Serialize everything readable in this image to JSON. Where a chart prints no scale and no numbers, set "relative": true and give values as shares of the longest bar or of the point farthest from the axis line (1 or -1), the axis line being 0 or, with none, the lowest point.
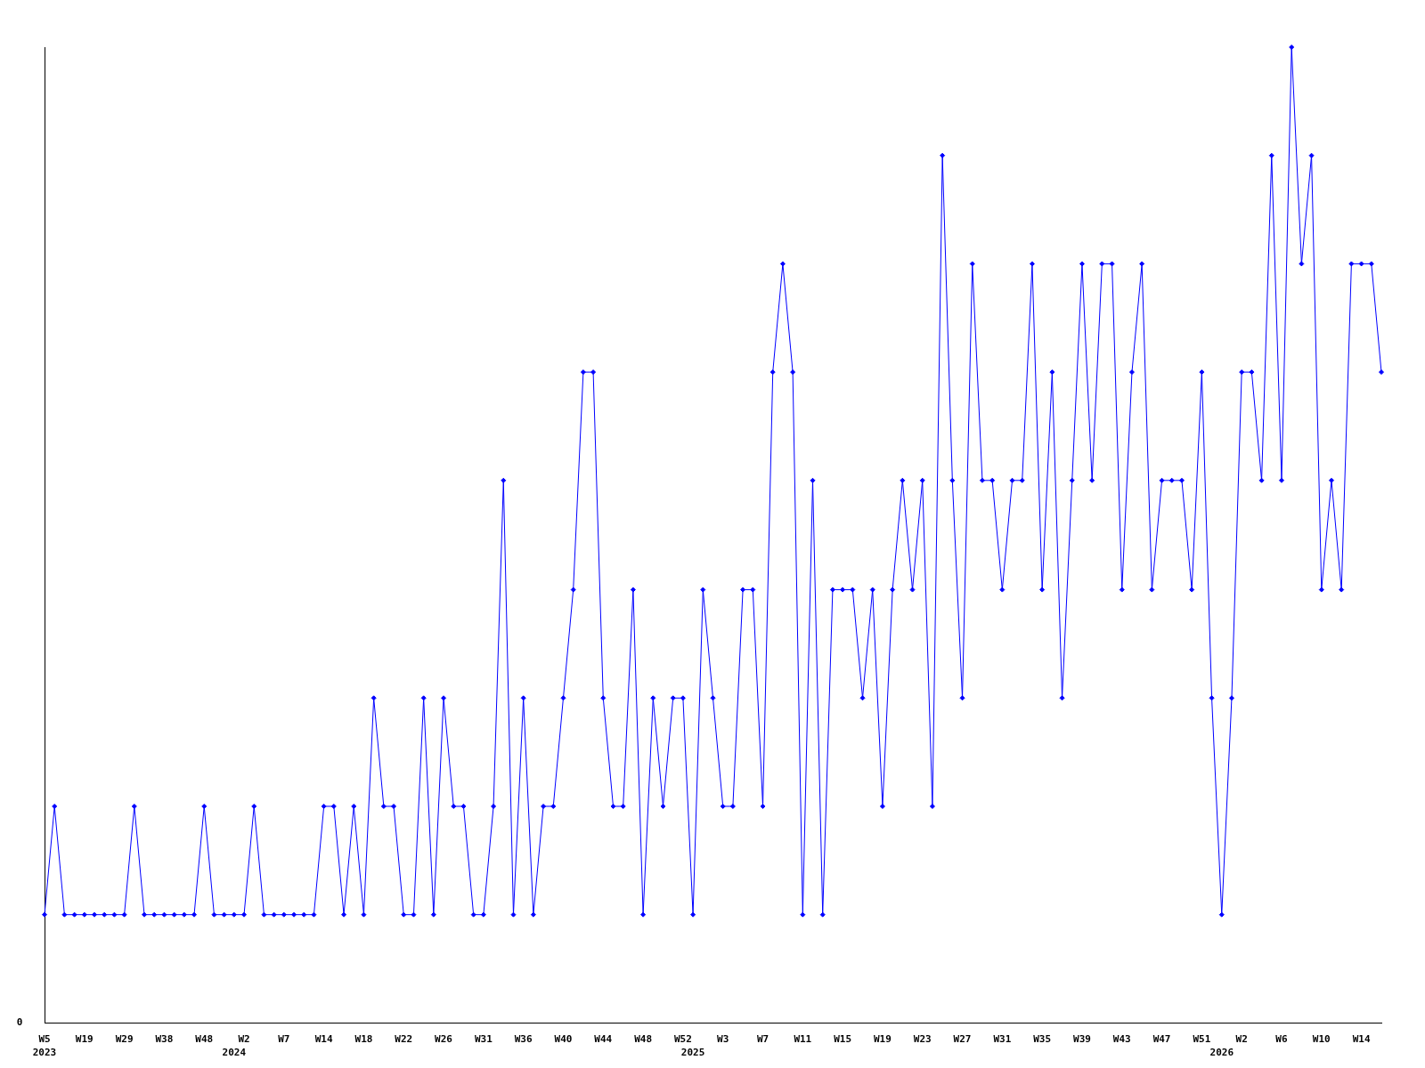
{
  "chart_data": {
    "type": "line",
    "relative": true,
    "color": "#0000ff",
    "marker": "diamond",
    "categories": [
      "W5\n2023",
      null,
      null,
      null,
      "W19",
      null,
      null,
      null,
      "W29",
      null,
      null,
      null,
      "W38",
      null,
      null,
      null,
      "W48",
      null,
      null,
      "\n2024",
      "W2",
      null,
      null,
      null,
      "W7",
      null,
      null,
      null,
      "W14",
      null,
      null,
      null,
      "W18",
      null,
      null,
      null,
      "W22",
      null,
      null,
      null,
      "W26",
      null,
      null,
      null,
      "W31",
      null,
      null,
      null,
      "W36",
      null,
      null,
      null,
      "W40",
      null,
      null,
      null,
      "W44",
      null,
      null,
      null,
      "W48",
      null,
      null,
      null,
      "W52",
      "\n2025",
      null,
      null,
      "W3",
      null,
      null,
      null,
      "W7",
      null,
      null,
      null,
      "W11",
      null,
      null,
      null,
      "W15",
      null,
      null,
      null,
      "W19",
      null,
      null,
      null,
      "W23",
      null,
      null,
      null,
      "W27",
      null,
      null,
      null,
      "W31",
      null,
      null,
      null,
      "W35",
      null,
      null,
      null,
      "W39",
      null,
      null,
      null,
      "W43",
      null,
      null,
      null,
      "W47",
      null,
      null,
      null,
      "W51",
      null,
      "\n2026",
      null,
      "W2",
      null,
      null,
      null,
      "W6",
      null,
      null,
      null,
      "W10",
      null,
      null,
      null,
      "W14",
      null,
      null
    ],
    "values": [
      0.111,
      0.222,
      0.111,
      0.111,
      0.111,
      0.111,
      0.111,
      0.111,
      0.111,
      0.222,
      0.111,
      0.111,
      0.111,
      0.111,
      0.111,
      0.111,
      0.222,
      0.111,
      0.111,
      0.111,
      0.111,
      0.222,
      0.111,
      0.111,
      0.111,
      0.111,
      0.111,
      0.111,
      0.222,
      0.222,
      0.111,
      0.222,
      0.111,
      0.333,
      0.222,
      0.222,
      0.111,
      0.111,
      0.333,
      0.111,
      0.333,
      0.222,
      0.222,
      0.111,
      0.111,
      0.222,
      0.556,
      0.111,
      0.333,
      0.111,
      0.222,
      0.222,
      0.333,
      0.444,
      0.667,
      0.667,
      0.333,
      0.222,
      0.222,
      0.444,
      0.111,
      0.333,
      0.222,
      0.333,
      0.333,
      0.111,
      0.444,
      0.333,
      0.222,
      0.222,
      0.444,
      0.444,
      0.222,
      0.667,
      0.778,
      0.667,
      0.111,
      0.556,
      0.111,
      0.444,
      0.444,
      0.444,
      0.333,
      0.444,
      0.222,
      0.444,
      0.556,
      0.444,
      0.556,
      0.222,
      0.889,
      0.556,
      0.333,
      0.778,
      0.556,
      0.556,
      0.444,
      0.556,
      0.556,
      0.778,
      0.444,
      0.667,
      0.333,
      0.556,
      0.778,
      0.556,
      0.778,
      0.778,
      0.444,
      0.667,
      0.778,
      0.444,
      0.556,
      0.556,
      0.556,
      0.444,
      0.667,
      0.333,
      0.111,
      0.333,
      0.667,
      0.667,
      0.556,
      0.889,
      0.556,
      1,
      0.778,
      0.889,
      0.444,
      0.556,
      0.444,
      0.778,
      0.778,
      0.778,
      0.667
    ],
    "annotations": [
      "0"
    ]
  }
}
